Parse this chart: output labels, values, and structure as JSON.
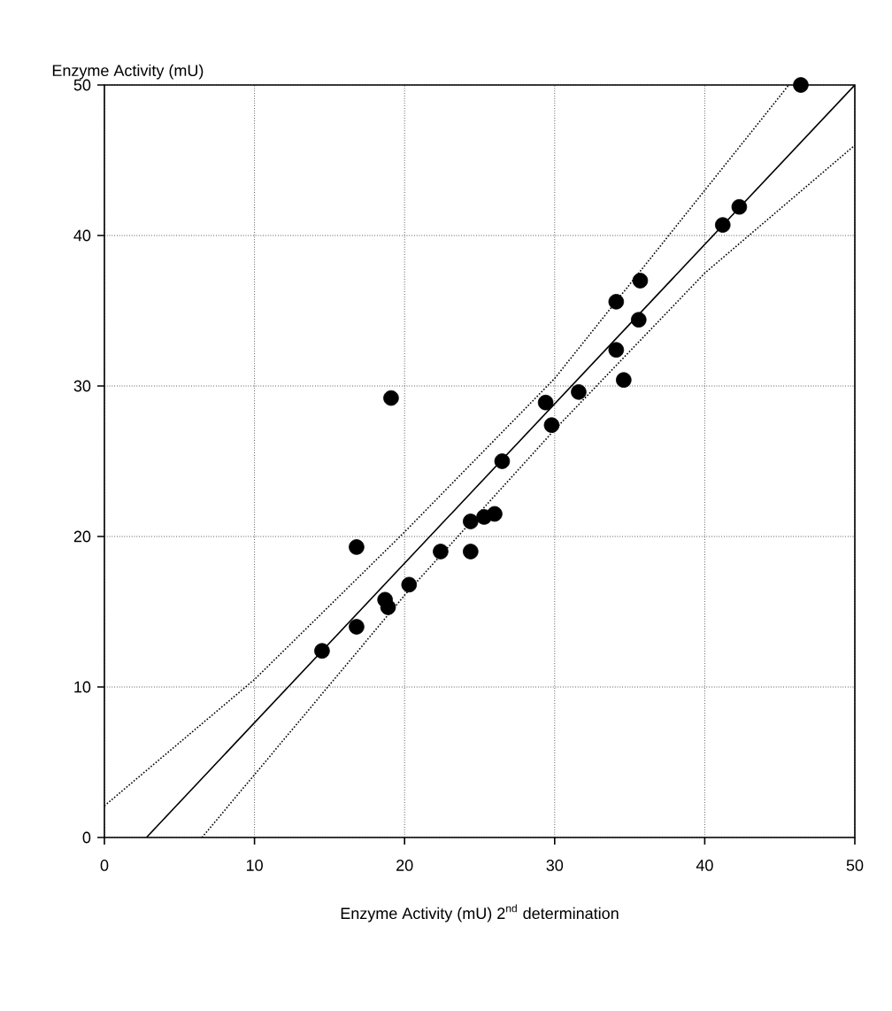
{
  "chart_data": {
    "type": "scatter",
    "xlabel": "Enzyme Activity (mU) 2$^{nd}$ determination",
    "ylabel": "Enzyme Activity (mU)",
    "xlim": [
      0,
      50
    ],
    "ylim": [
      0,
      50
    ],
    "xticks": [
      0,
      10,
      20,
      30,
      40,
      50
    ],
    "yticks": [
      0,
      10,
      20,
      30,
      40,
      50
    ],
    "grid": true,
    "marker": "circle",
    "series": [
      {
        "color": "#000000",
        "x": [
          14.5,
          16.8,
          16.8,
          18.7,
          18.9,
          19.1,
          20.3,
          22.4,
          24.4,
          24.4,
          25.3,
          26.0,
          26.5,
          29.4,
          29.8,
          31.6,
          34.1,
          34.1,
          34.6,
          35.6,
          35.7,
          41.2,
          42.3,
          46.4
        ],
        "values": [
          12.4,
          14.0,
          19.3,
          15.8,
          15.3,
          29.2,
          16.8,
          19.0,
          19.0,
          21.0,
          21.3,
          21.5,
          25.0,
          28.9,
          27.4,
          29.6,
          35.6,
          32.4,
          30.4,
          34.4,
          37.0,
          40.7,
          41.9,
          50.0
        ]
      },
      {
        "type": "line",
        "color": "#000000",
        "line_style": "solid",
        "marker": "none",
        "x": [
          2.8,
          50
        ],
        "values": [
          0,
          50
        ]
      },
      {
        "type": "line",
        "color": "#000000",
        "line_style": "dotted",
        "marker": "none",
        "x": [
          0,
          10,
          20,
          30,
          45.6
        ],
        "values": [
          2.1,
          10.5,
          20.3,
          30.5,
          50
        ]
      },
      {
        "type": "line",
        "color": "#000000",
        "line_style": "dotted",
        "marker": "none",
        "x": [
          6.5,
          20,
          30,
          40,
          50
        ],
        "values": [
          0,
          16.1,
          27.1,
          37.5,
          46
        ]
      }
    ]
  }
}
